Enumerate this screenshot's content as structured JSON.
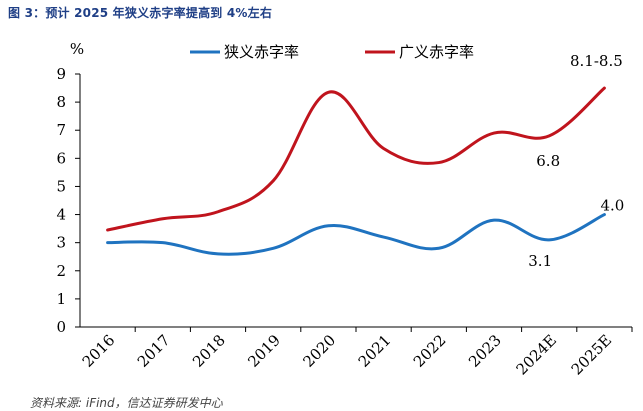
{
  "figure": {
    "title": "图 3：预计 2025 年狭义赤字率提高到 4%左右",
    "source": "资料来源: iFind，信达证券研发中心"
  },
  "chart_data": {
    "type": "line",
    "title": "图 3：预计 2025 年狭义赤字率提高到 4%左右",
    "ylabel": "%",
    "xlabel": "",
    "ylim": [
      0,
      9
    ],
    "yticks": [
      "0",
      "1",
      "2",
      "3",
      "4",
      "5",
      "6",
      "7",
      "8",
      "9"
    ],
    "categories": [
      "2016",
      "2017",
      "2018",
      "2019",
      "2020",
      "2021",
      "2022",
      "2023",
      "2024E",
      "2025E"
    ],
    "series": [
      {
        "name": "狭义赤字率",
        "color": "#1f73c0",
        "values": [
          3.0,
          3.0,
          2.6,
          2.8,
          3.6,
          3.2,
          2.8,
          3.8,
          3.1,
          4.0
        ]
      },
      {
        "name": "广义赤字率",
        "color": "#c0141d",
        "values": [
          3.45,
          3.85,
          4.1,
          5.2,
          8.35,
          6.35,
          5.85,
          6.9,
          6.8,
          8.5
        ]
      }
    ],
    "annotations": [
      {
        "text": "8.1-8.5",
        "series": 1,
        "index": 9
      },
      {
        "text": "6.8",
        "series": 1,
        "index": 8
      },
      {
        "text": "4.0",
        "series": 0,
        "index": 9
      },
      {
        "text": "3.1",
        "series": 0,
        "index": 8
      }
    ],
    "legend_position": "top",
    "grid": false
  }
}
